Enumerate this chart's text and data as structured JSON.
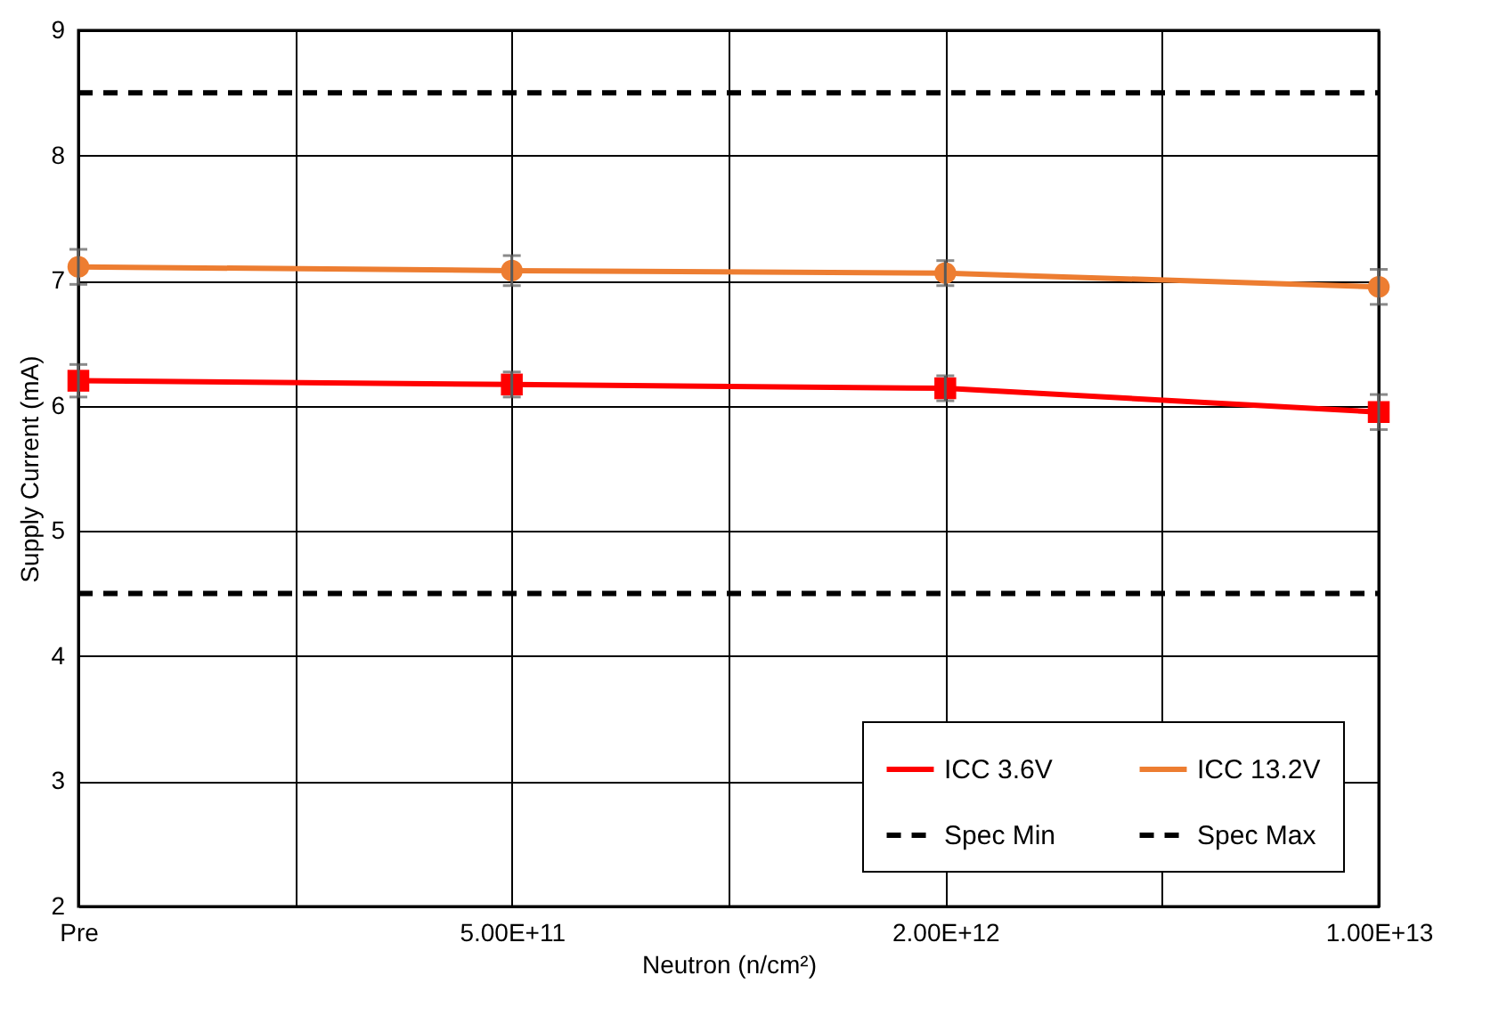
{
  "chart_data": {
    "type": "line",
    "xlabel": "Neutron (n/cm²)",
    "ylabel": "Supply Current (mA)",
    "categories": [
      "Pre",
      "5.00E+11",
      "2.00E+12",
      "1.00E+13"
    ],
    "ylim": [
      2,
      9
    ],
    "yticks": [
      2,
      3,
      4,
      5,
      6,
      7,
      8,
      9
    ],
    "grid": true,
    "legend": "bottom right",
    "series": [
      {
        "name": "ICC 3.6V",
        "color": "#ff0000",
        "values": [
          6.2,
          6.17,
          6.14,
          5.95
        ],
        "errors": [
          0.13,
          0.1,
          0.1,
          0.14
        ],
        "marker": "square",
        "line_style": "solid"
      },
      {
        "name": "ICC 13.2V",
        "color": "#ed7d31",
        "values": [
          7.11,
          7.08,
          7.06,
          6.95
        ],
        "errors": [
          0.14,
          0.12,
          0.1,
          0.14
        ],
        "marker": "circle",
        "line_style": "solid"
      },
      {
        "name": "Spec Min",
        "color": "#000000",
        "values": [
          4.5,
          4.5,
          4.5,
          4.5
        ],
        "marker": "none",
        "line_style": "dashed"
      },
      {
        "name": "Spec Max",
        "color": "#000000",
        "values": [
          8.5,
          8.5,
          8.5,
          8.5
        ],
        "marker": "none",
        "line_style": "dashed"
      }
    ]
  }
}
